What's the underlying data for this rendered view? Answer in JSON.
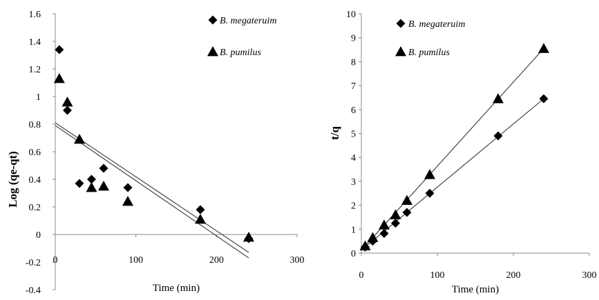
{
  "chart_data": [
    {
      "type": "scatter",
      "title": "",
      "xlabel": "Time (min)",
      "ylabel": "Log (qe-qt)",
      "xlim": [
        0,
        300
      ],
      "ylim": [
        -0.4,
        1.6
      ],
      "xticks": [
        "0",
        "100",
        "200",
        "300"
      ],
      "yticks": [
        "-0.4",
        "-0.2",
        "0",
        "0.2",
        "0.4",
        "0.6",
        "0.8",
        "1",
        "1.2",
        "1.4",
        "1.6"
      ],
      "grid": false,
      "legend": "top-right",
      "series": [
        {
          "name": "B. megateruim",
          "marker": "diamond",
          "x": [
            5,
            15,
            30,
            45,
            60,
            90,
            180,
            240
          ],
          "y": [
            1.34,
            0.9,
            0.37,
            0.4,
            0.48,
            0.34,
            0.18,
            -0.03
          ]
        },
        {
          "name": "B. pumilus",
          "marker": "triangle",
          "x": [
            5,
            15,
            30,
            45,
            60,
            90,
            180,
            240
          ],
          "y": [
            1.13,
            0.96,
            0.69,
            0.34,
            0.35,
            0.24,
            0.11,
            -0.02
          ]
        }
      ],
      "trendlines": [
        {
          "x": [
            0,
            240
          ],
          "y": [
            0.81,
            -0.13
          ]
        },
        {
          "x": [
            0,
            240
          ],
          "y": [
            0.79,
            -0.17
          ]
        }
      ]
    },
    {
      "type": "scatter",
      "title": "",
      "xlabel": "Time (min)",
      "ylabel": "t/q",
      "xlim": [
        0,
        300
      ],
      "ylim": [
        0,
        10
      ],
      "xticks": [
        "0",
        "100",
        "200",
        "300"
      ],
      "yticks": [
        "0",
        "1",
        "2",
        "3",
        "4",
        "5",
        "6",
        "7",
        "8",
        "9",
        "10"
      ],
      "grid": false,
      "legend": "top-left",
      "series": [
        {
          "name": "B. megateruim",
          "marker": "diamond",
          "x": [
            5,
            15,
            30,
            45,
            60,
            90,
            180,
            240
          ],
          "y": [
            0.25,
            0.5,
            0.82,
            1.25,
            1.7,
            2.5,
            4.9,
            6.45
          ]
        },
        {
          "name": "B. pumilus",
          "marker": "triangle",
          "x": [
            5,
            15,
            30,
            45,
            60,
            90,
            180,
            240
          ],
          "y": [
            0.3,
            0.65,
            1.17,
            1.6,
            2.2,
            3.28,
            6.45,
            8.55
          ]
        }
      ],
      "trendlines": [
        {
          "x": [
            0,
            240
          ],
          "y": [
            0.12,
            6.45
          ]
        },
        {
          "x": [
            0,
            240
          ],
          "y": [
            0.12,
            8.55
          ]
        }
      ]
    }
  ]
}
